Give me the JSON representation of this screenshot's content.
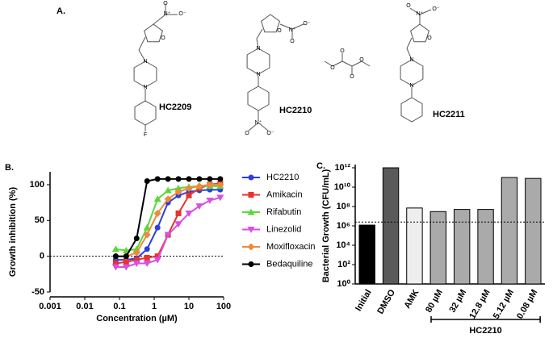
{
  "panel_labels": [
    "A.",
    "B.",
    "C."
  ],
  "structures": [
    {
      "label": "HC2209",
      "atoms": [
        "N⁺",
        "O⁻",
        "O",
        "O",
        "N",
        "N",
        "F"
      ]
    },
    {
      "label": "HC2210",
      "atoms": [
        "N⁺",
        "O⁻",
        "O",
        "O",
        "N",
        "N",
        "N⁺",
        "O",
        "O⁻"
      ]
    },
    {
      "atoms": [
        "O",
        "O",
        "O",
        "O"
      ]
    },
    {
      "label": "HC2211",
      "atoms": [
        "N⁺",
        "O⁻",
        "O",
        "O",
        "N",
        "N"
      ]
    }
  ],
  "chart_data": [
    {
      "type": "line",
      "x_label": "Concentration (µM)",
      "y_label": "Growth inhibition (%)",
      "x_scale": "log",
      "xlim": [
        0.001,
        100
      ],
      "xticks": [
        0.001,
        0.01,
        0.1,
        1,
        10,
        100
      ],
      "ylim": [
        -50,
        118
      ],
      "yticks": [
        -50,
        0,
        50,
        100
      ],
      "reference_line": 0,
      "x": [
        0.078,
        0.156,
        0.3125,
        0.625,
        1.25,
        2.5,
        5,
        10,
        20,
        40,
        80
      ],
      "series": [
        {
          "name": "HC2210",
          "color": "#2b3ee0",
          "marker": "circle",
          "values": [
            -5,
            -5,
            -3,
            10,
            40,
            75,
            85,
            90,
            92,
            93,
            93
          ]
        },
        {
          "name": "Amikacin",
          "color": "#e8322a",
          "marker": "square",
          "values": [
            -10,
            -8,
            -5,
            -2,
            0,
            30,
            60,
            85,
            95,
            100,
            102
          ]
        },
        {
          "name": "Rifabutin",
          "color": "#5ad63c",
          "marker": "triangle-up",
          "values": [
            10,
            8,
            10,
            40,
            80,
            92,
            95,
            97,
            98,
            98,
            98
          ]
        },
        {
          "name": "Linezolid",
          "color": "#d94fe0",
          "marker": "triangle-down",
          "values": [
            -15,
            -15,
            -10,
            -10,
            -5,
            30,
            45,
            60,
            70,
            78,
            82
          ]
        },
        {
          "name": "Moxifloxacin",
          "color": "#f08a3a",
          "marker": "diamond",
          "values": [
            0,
            0,
            5,
            30,
            60,
            80,
            90,
            95,
            98,
            100,
            100
          ]
        },
        {
          "name": "Bedaquiline",
          "color": "#000000",
          "marker": "circle",
          "values": [
            0,
            0,
            25,
            105,
            108,
            108,
            108,
            108,
            108,
            108,
            108
          ]
        }
      ]
    },
    {
      "type": "bar",
      "y_label": "Bacterial Growth (CFU/mL)",
      "y_scale": "log",
      "ylim": [
        1,
        1000000000000
      ],
      "yticks": [
        {
          "value": 1,
          "label": "10⁰"
        },
        {
          "value": 100,
          "label": "10²"
        },
        {
          "value": 10000,
          "label": "10⁴"
        },
        {
          "value": 1000000,
          "label": "10⁶"
        },
        {
          "value": 100000000,
          "label": "10⁸"
        },
        {
          "value": 10000000000,
          "label": "10¹⁰"
        },
        {
          "value": 1000000000000,
          "label": "10¹²"
        }
      ],
      "reference_line": 2500000,
      "categories": [
        "Initial",
        "DMSO",
        "AMK",
        "80 µM",
        "32 µM",
        "12.8 µM",
        "5.12 µM",
        "0.08 µM"
      ],
      "values": [
        1200000,
        1000000000000,
        70000000,
        30000000,
        50000000,
        50000000,
        100000000000,
        80000000000
      ],
      "colors": [
        "#000000",
        "#5a5a5a",
        "#eeeeee",
        "#aaaaaa",
        "#aaaaaa",
        "#aaaaaa",
        "#aaaaaa",
        "#aaaaaa"
      ],
      "group": {
        "label": "HC2210",
        "from": 3,
        "to": 7
      }
    }
  ]
}
